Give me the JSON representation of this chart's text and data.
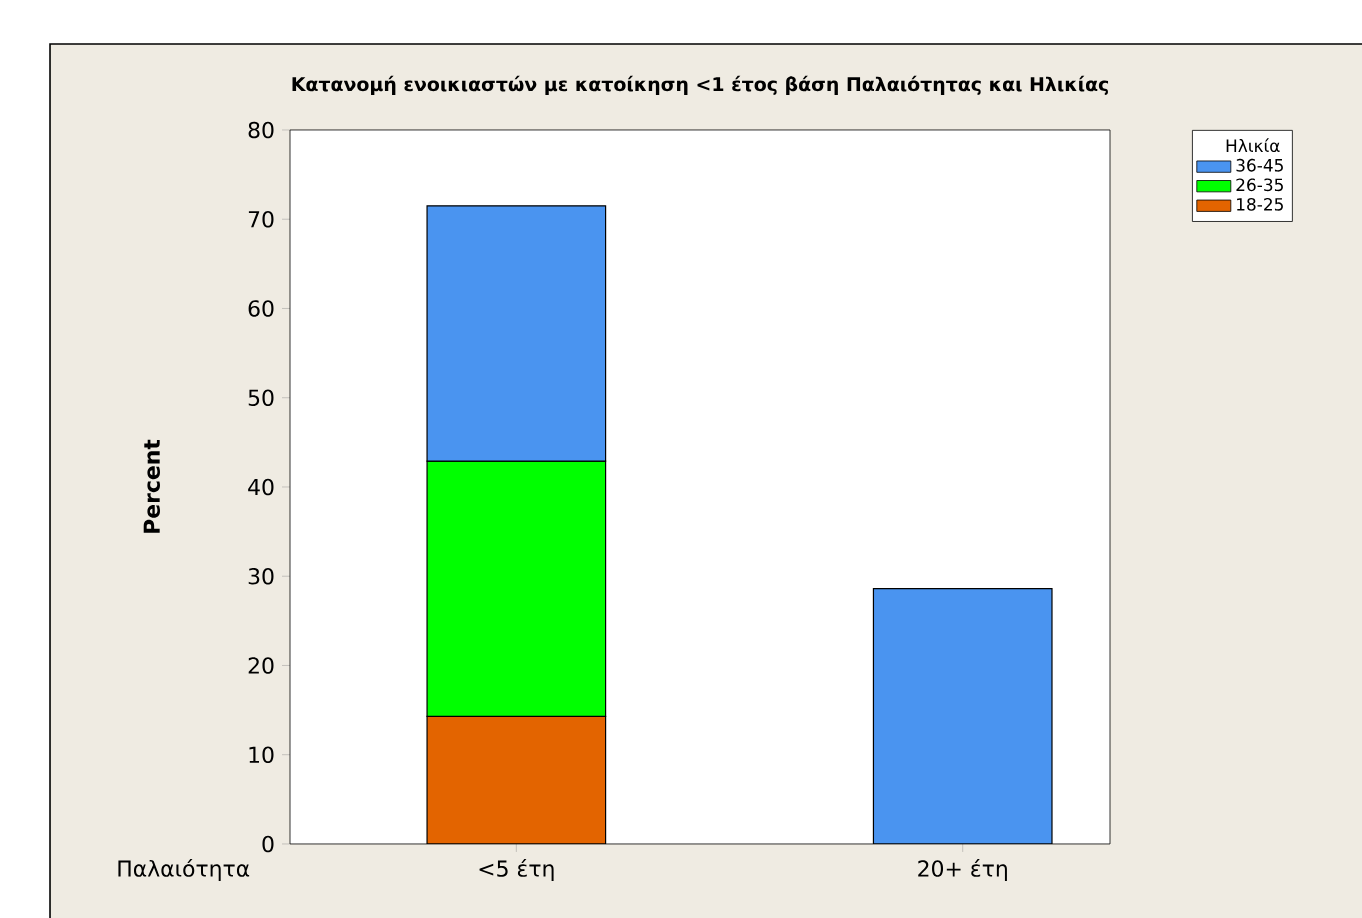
{
  "chart_data": {
    "type": "bar",
    "stacked": true,
    "title": "**Κατανομή ενοικιαστών με κατοίκηση <1 έτος βάση Παλαιότητας και Ηλικίας**",
    "xlabel": "Παλαιότητα",
    "ylabel": "**Percent**",
    "legend_title": "Ηλικία",
    "legend": "top right",
    "categories": [
      "<5 έτη",
      "20+ έτη"
    ],
    "series": [
      {
        "name": "18-25",
        "color": "#e36400",
        "values": [
          14.3,
          null
        ]
      },
      {
        "name": "26-35",
        "color": "#00ff00",
        "values": [
          28.6,
          null
        ]
      },
      {
        "name": "36-45",
        "color": "#4a94f0",
        "values": [
          28.6,
          28.6
        ]
      }
    ],
    "ylim": [
      0,
      80
    ],
    "yticks": [
      0,
      10,
      20,
      30,
      40,
      50,
      60,
      70,
      80
    ],
    "grid": false
  }
}
